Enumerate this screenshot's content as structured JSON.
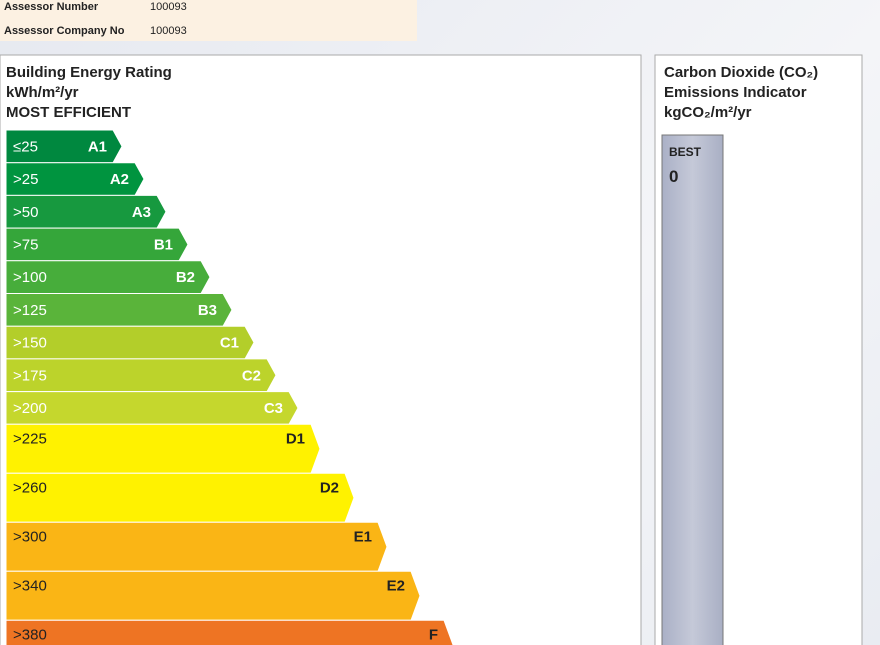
{
  "assessor": {
    "number_label": "Assessor Number",
    "number": "100093",
    "company_label": "Assessor Company No",
    "company": "100093"
  },
  "ber": {
    "title": "Building Energy Rating",
    "unit": "kWh/m²/yr",
    "note": "MOST EFFICIENT",
    "bands": [
      {
        "threshold": "≤25",
        "grade": "A1",
        "color": "#00883f"
      },
      {
        "threshold": ">25",
        "grade": "A2",
        "color": "#00943f"
      },
      {
        "threshold": ">50",
        "grade": "A3",
        "color": "#17993f"
      },
      {
        "threshold": ">75",
        "grade": "B1",
        "color": "#35a63a"
      },
      {
        "threshold": ">100",
        "grade": "B2",
        "color": "#47ad3b"
      },
      {
        "threshold": ">125",
        "grade": "B3",
        "color": "#5ab43a"
      },
      {
        "threshold": ">150",
        "grade": "C1",
        "color": "#b3ce2a"
      },
      {
        "threshold": ">175",
        "grade": "C2",
        "color": "#bcd32b"
      },
      {
        "threshold": ">200",
        "grade": "C3",
        "color": "#c5d72d"
      },
      {
        "threshold": ">225",
        "grade": "D1",
        "color": "#fff200"
      },
      {
        "threshold": ">260",
        "grade": "D2",
        "color": "#fff200"
      },
      {
        "threshold": ">300",
        "grade": "E1",
        "color": "#fab515"
      },
      {
        "threshold": ">340",
        "grade": "E2",
        "color": "#fab515"
      },
      {
        "threshold": ">380",
        "grade": "F",
        "color": "#ee7423"
      }
    ]
  },
  "co2": {
    "title_1": "Carbon Dioxide (CO₂)",
    "title_2": "Emissions Indicator",
    "unit": "kgCO₂/m²/yr",
    "best": "BEST",
    "best_value": "0"
  }
}
